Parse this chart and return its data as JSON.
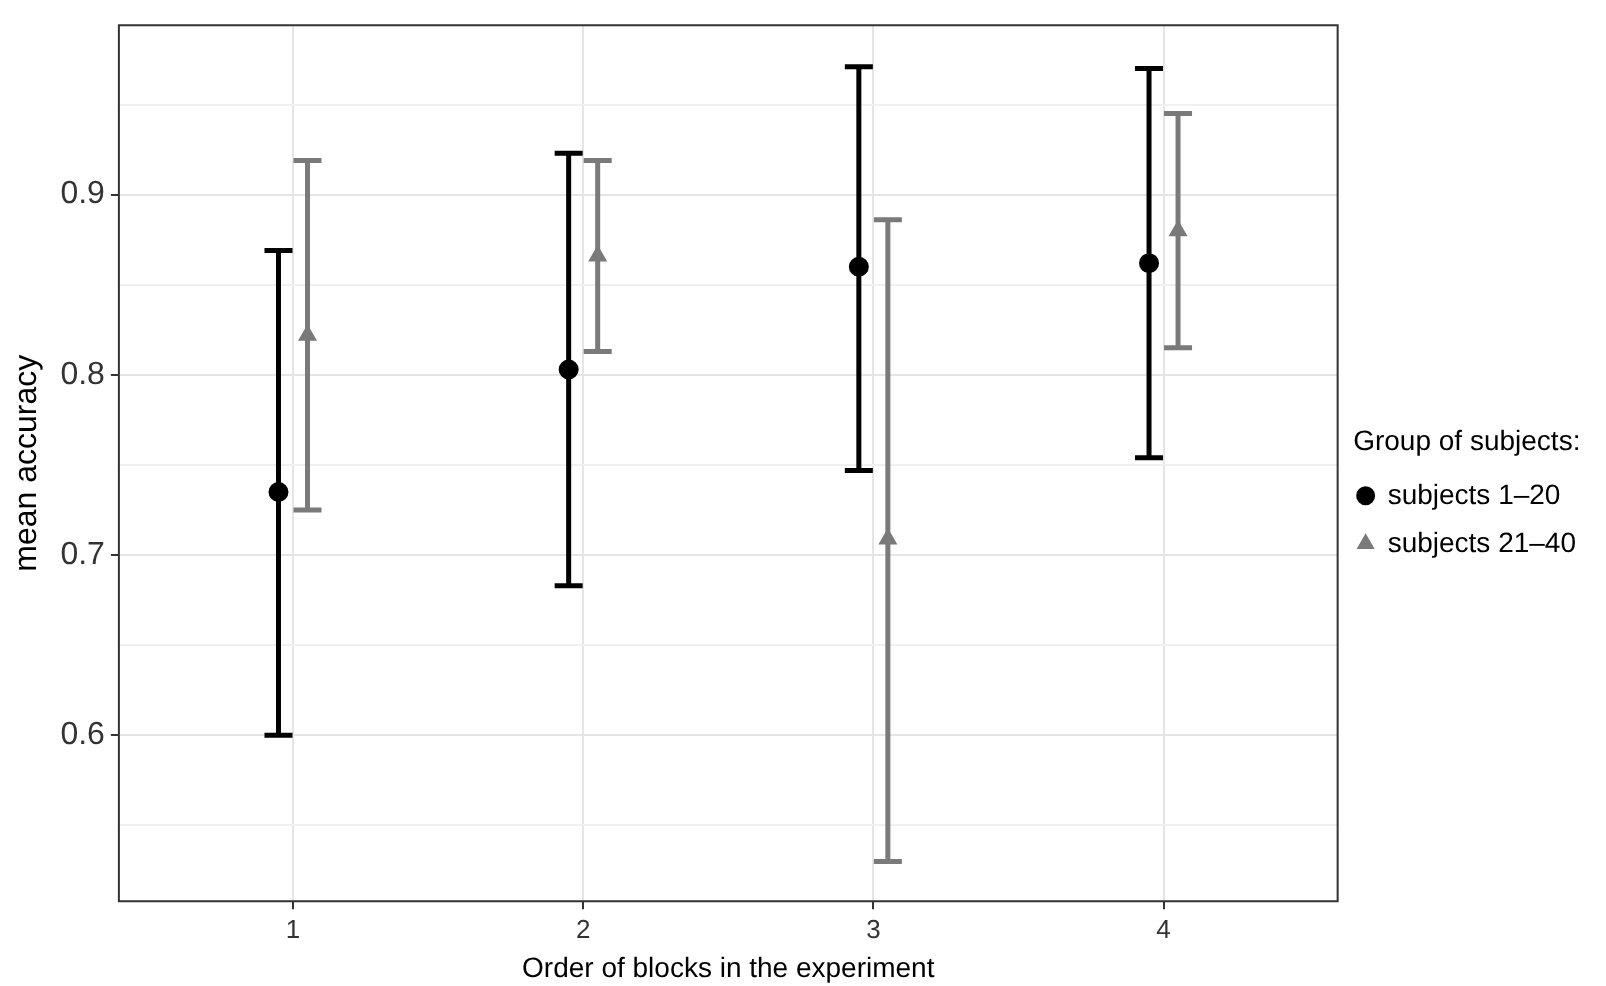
{
  "chart_data": {
    "type": "scatter",
    "xlabel": "Order of blocks in the experiment",
    "ylabel": "mean accuracy",
    "legend_title": "Group of subjects:",
    "legend": "right",
    "grid": true,
    "categories": [
      "1",
      "2",
      "3",
      "4"
    ],
    "ylim": [
      0.508,
      0.994
    ],
    "yticks": [
      {
        "value": 0.55,
        "label": null
      },
      0.6,
      {
        "value": 0.65,
        "label": null
      },
      0.7,
      {
        "value": 0.75,
        "label": null
      },
      0.8,
      {
        "value": 0.85,
        "label": null
      },
      0.9,
      {
        "value": 0.95,
        "label": null
      }
    ],
    "series": [
      {
        "name": "subjects 1–20",
        "color": "#000000",
        "marker": "circle",
        "values": [
          0.735,
          0.803,
          0.86,
          0.862
        ],
        "errors": [
          [
            0.6,
            0.869
          ],
          [
            0.683,
            0.923
          ],
          [
            0.747,
            0.971
          ],
          [
            0.754,
            0.97
          ]
        ]
      },
      {
        "name": "subjects 21–40",
        "color": "#7a7a7a",
        "marker": "triangle",
        "values": [
          0.822,
          0.866,
          0.709,
          0.88
        ],
        "errors": [
          [
            0.725,
            0.919
          ],
          [
            0.813,
            0.919
          ],
          [
            0.53,
            0.886
          ],
          [
            0.815,
            0.945
          ]
        ]
      }
    ]
  }
}
